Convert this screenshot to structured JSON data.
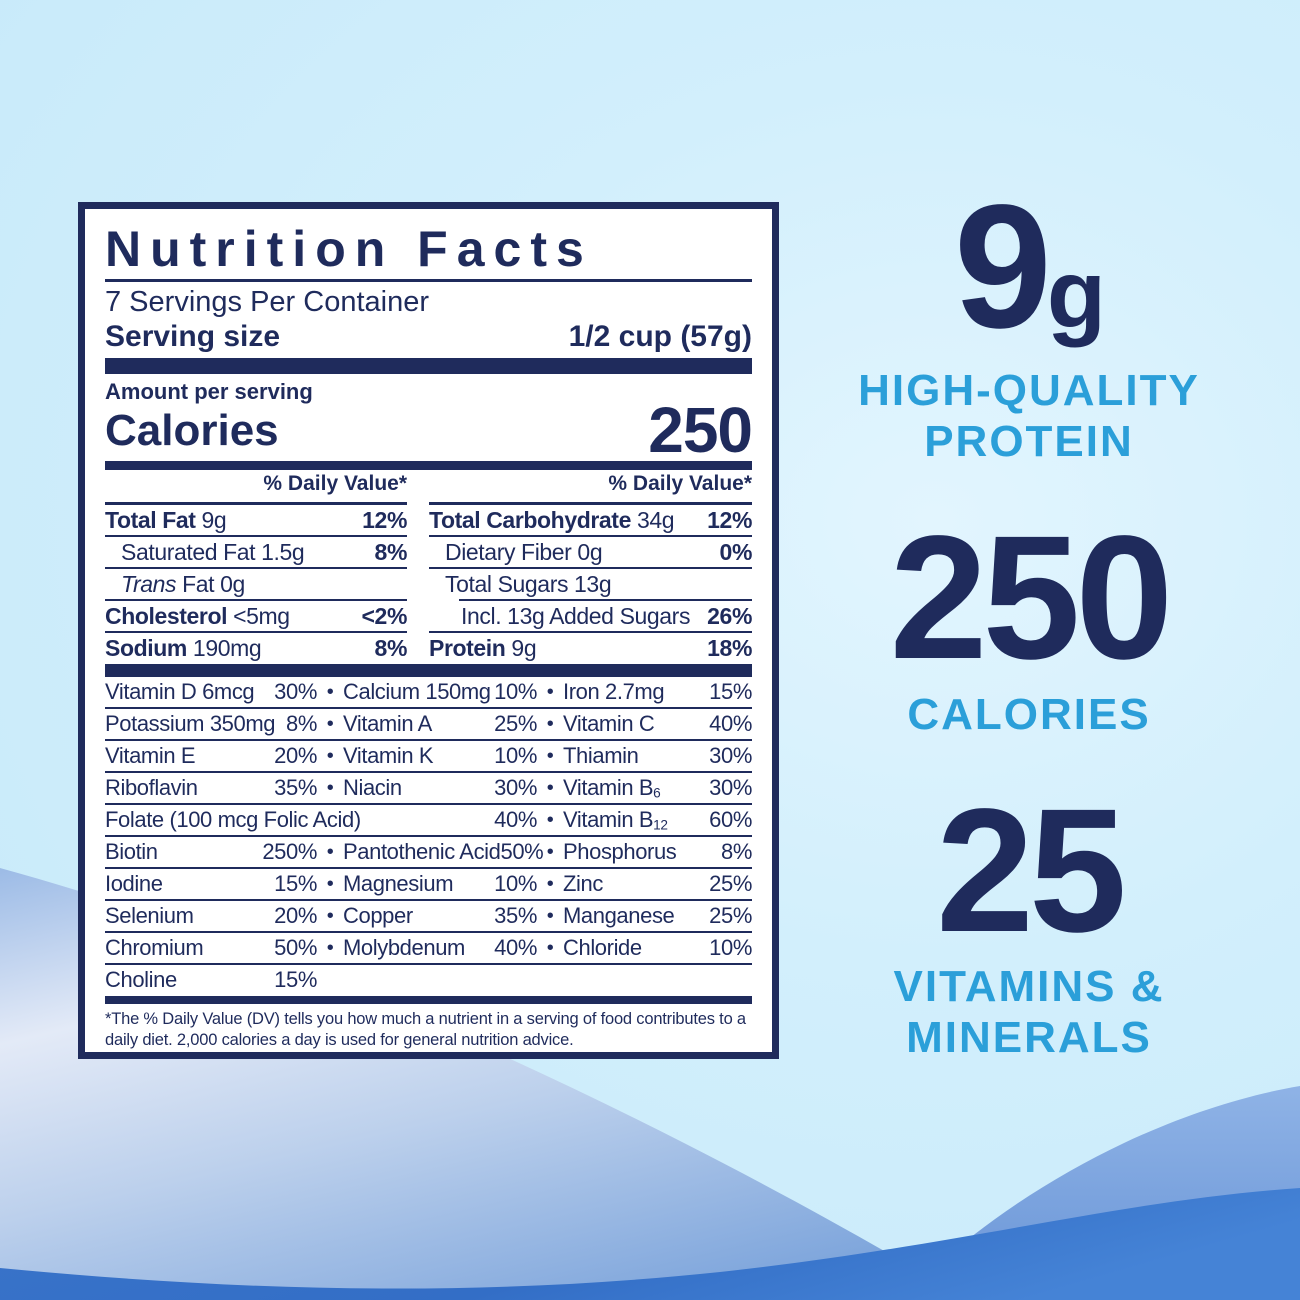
{
  "colors": {
    "navy": "#1f2b5c",
    "cyan": "#2b9fd9",
    "bg_light_blue": "#cdeefb",
    "wave_periwinkle": "#7fa6dc",
    "wave_mid_blue": "#6f9cdc",
    "wave_bottom_blue": "#3671c8"
  },
  "label": {
    "title": "Nutrition Facts",
    "servings_per_container": "7 Servings Per Container",
    "serving_size_label": "Serving size",
    "serving_size_value": "1/2 cup (57g)",
    "amount_per_serving": "Amount per serving",
    "calories_label": "Calories",
    "calories_value": "250",
    "daily_value_header": "% Daily Value*",
    "bullet": "•",
    "left_rows": [
      {
        "segments": [
          [
            "b",
            "Total Fat"
          ],
          [
            "r",
            " 9g"
          ]
        ],
        "pct": "12%",
        "indent": 0
      },
      {
        "segments": [
          [
            "r",
            "Saturated Fat 1.5g"
          ]
        ],
        "pct": "8%",
        "indent": 1
      },
      {
        "segments": [
          [
            "i",
            "Trans"
          ],
          [
            "r",
            " Fat 0g"
          ]
        ],
        "pct": "",
        "indent": 1
      },
      {
        "segments": [
          [
            "b",
            "Cholesterol"
          ],
          [
            "r",
            " <5mg"
          ]
        ],
        "pct": "<2%",
        "indent": 0
      },
      {
        "segments": [
          [
            "b",
            "Sodium"
          ],
          [
            "r",
            " 190mg"
          ]
        ],
        "pct": "8%",
        "indent": 0
      }
    ],
    "right_rows": [
      {
        "segments": [
          [
            "b",
            "Total Carbohydrate"
          ],
          [
            "r",
            " 34g"
          ]
        ],
        "pct": "12%",
        "indent": 0
      },
      {
        "segments": [
          [
            "r",
            "Dietary Fiber 0g"
          ]
        ],
        "pct": "0%",
        "indent": 1
      },
      {
        "segments": [
          [
            "r",
            "Total Sugars 13g"
          ]
        ],
        "pct": "",
        "indent": 1,
        "rule_indent": 30
      },
      {
        "segments": [
          [
            "r",
            "Incl. 13g Added Sugars"
          ]
        ],
        "pct": "26%",
        "indent": 2
      },
      {
        "segments": [
          [
            "b",
            "Protein"
          ],
          [
            "r",
            " 9g"
          ]
        ],
        "pct": "18%",
        "indent": 0
      }
    ],
    "vitamin_rows": [
      {
        "type": "normal",
        "cells": [
          {
            "n": "Vitamin D 6mcg",
            "p": "30%"
          },
          {
            "n": "Calcium 150mg",
            "p": "10%"
          },
          {
            "n": "Iron 2.7mg",
            "p": "15%"
          }
        ]
      },
      {
        "type": "normal",
        "cells": [
          {
            "n": "Potassium 350mg",
            "p": "8%"
          },
          {
            "n": "Vitamin A",
            "p": "25%"
          },
          {
            "n": "Vitamin C",
            "p": "40%"
          }
        ]
      },
      {
        "type": "normal",
        "cells": [
          {
            "n": "Vitamin E",
            "p": "20%"
          },
          {
            "n": "Vitamin K",
            "p": "10%"
          },
          {
            "n": "Thiamin",
            "p": "30%"
          }
        ]
      },
      {
        "type": "normal",
        "cells": [
          {
            "n": "Riboflavin",
            "p": "35%"
          },
          {
            "n": "Niacin",
            "p": "30%"
          },
          {
            "n": "Vitamin B",
            "sub": "6",
            "p": "30%"
          }
        ]
      },
      {
        "type": "wide",
        "cells": [
          {
            "n": "Folate (100 mcg Folic Acid)",
            "p": "40%"
          },
          {
            "n": "Vitamin B",
            "sub": "12",
            "p": "60%"
          }
        ]
      },
      {
        "type": "normal",
        "cells": [
          {
            "n": "Biotin",
            "p": "250%"
          },
          {
            "n": "Pantothenic Acid",
            "p": "50%"
          },
          {
            "n": "Phosphorus",
            "p": "8%"
          }
        ]
      },
      {
        "type": "normal",
        "cells": [
          {
            "n": "Iodine",
            "p": "15%"
          },
          {
            "n": "Magnesium",
            "p": "10%"
          },
          {
            "n": "Zinc",
            "p": "25%"
          }
        ]
      },
      {
        "type": "normal",
        "cells": [
          {
            "n": "Selenium",
            "p": "20%"
          },
          {
            "n": "Copper",
            "p": "35%"
          },
          {
            "n": "Manganese",
            "p": "25%"
          }
        ]
      },
      {
        "type": "normal",
        "cells": [
          {
            "n": "Chromium",
            "p": "50%"
          },
          {
            "n": "Molybdenum",
            "p": "40%"
          },
          {
            "n": "Chloride",
            "p": "10%"
          }
        ]
      },
      {
        "type": "single",
        "cells": [
          {
            "n": "Choline",
            "p": "15%"
          }
        ]
      }
    ],
    "footnote": "*The % Daily Value (DV) tells you how much a nutrient in a serving of food contributes to a daily diet. 2,000 calories a day is used for general nutrition advice."
  },
  "highlights": [
    {
      "number": "9",
      "unit": "g",
      "lines": [
        "HIGH-QUALITY",
        "PROTEIN"
      ]
    },
    {
      "number": "250",
      "unit": "",
      "lines": [
        "CALORIES"
      ]
    },
    {
      "number": "25",
      "unit": "",
      "lines": [
        "VITAMINS &",
        "MINERALS"
      ]
    }
  ]
}
